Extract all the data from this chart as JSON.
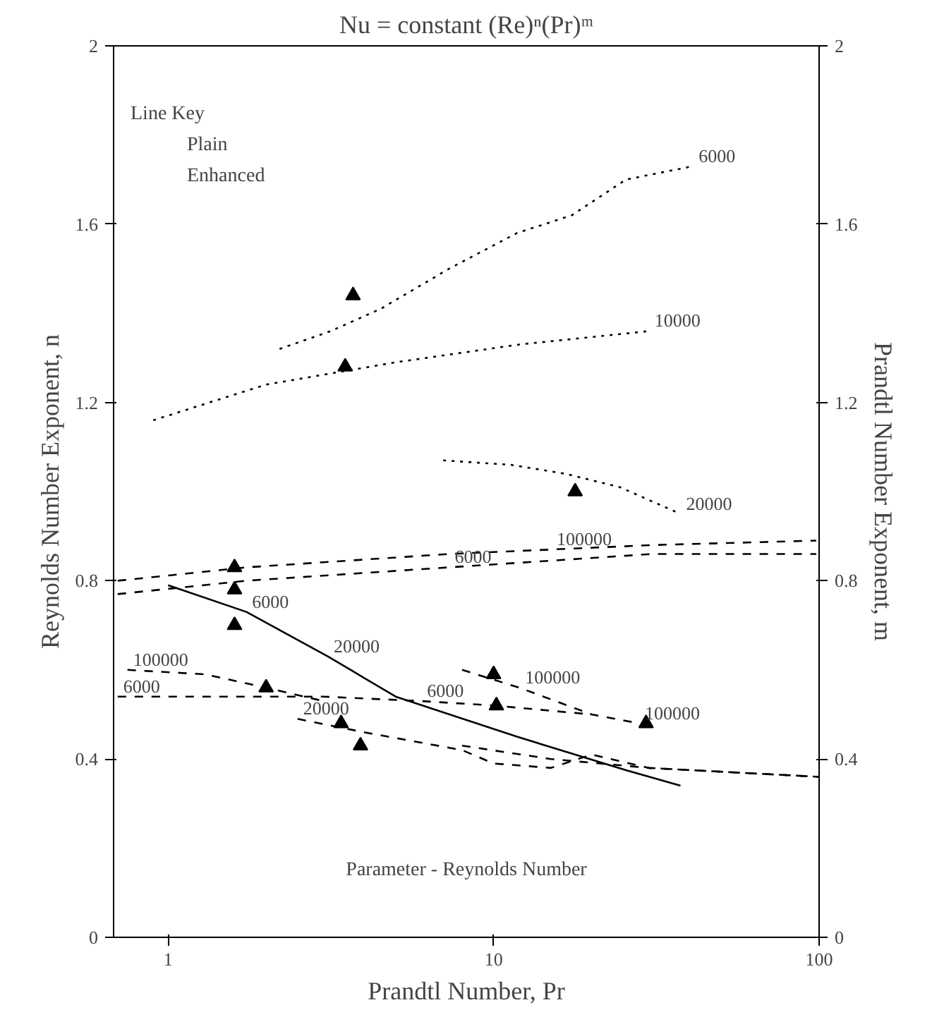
{
  "chart_data": {
    "type": "line",
    "title": "Nu = constant (Re)ⁿ(Pr)ᵐ",
    "xlabel": "Prandtl Number, Pr",
    "ylabel": "Reynolds Number Exponent, n",
    "y2label": "Prandtl Number Exponent, m",
    "log": "x",
    "grid": false,
    "xlim": [
      0.68,
      100
    ],
    "xticks": [
      1,
      10,
      100
    ],
    "ylim": [
      0,
      2
    ],
    "yticks": [
      0,
      0.4,
      0.8,
      1.2,
      1.6,
      2
    ],
    "y2lim": [
      0,
      2
    ],
    "y2ticks": [
      0,
      0.4,
      0.8,
      1.2,
      1.6,
      2
    ],
    "series": [
      {
        "color": "#000000",
        "line_style": "dotted",
        "x": [
          2.2,
          3.16,
          4.5,
          7.3,
          11.8,
          17.4,
          25.5,
          41
        ],
        "values": [
          1.32,
          1.36,
          1.41,
          1.5,
          1.58,
          1.62,
          1.7,
          1.73
        ]
      },
      {
        "color": "#000000",
        "line_style": "dotted",
        "x": [
          0.9,
          2,
          5,
          12,
          30
        ],
        "values": [
          1.16,
          1.24,
          1.29,
          1.33,
          1.36
        ]
      },
      {
        "color": "#000000",
        "line_style": "dotted",
        "x": [
          7,
          11.3,
          16.6,
          24.4,
          37.5
        ],
        "values": [
          1.07,
          1.06,
          1.04,
          1.01,
          0.95
        ]
      },
      {
        "color": "#000000",
        "line_style": "dashed",
        "x": [
          0.7,
          1.74,
          7.3,
          15,
          30.8,
          98
        ],
        "values": [
          0.8,
          0.83,
          0.86,
          0.87,
          0.88,
          0.89
        ]
      },
      {
        "color": "#000000",
        "line_style": "dashed",
        "x": [
          0.7,
          1.74,
          7.3,
          30.8,
          98
        ],
        "values": [
          0.77,
          0.8,
          0.83,
          0.86,
          0.86
        ]
      },
      {
        "color": "#000000",
        "line_style": "solid",
        "x": [
          1.0,
          1.74,
          3.1,
          5.0,
          11.8,
          25.5,
          37.5
        ],
        "values": [
          0.79,
          0.73,
          0.63,
          0.54,
          0.45,
          0.375,
          0.34
        ]
      },
      {
        "color": "#000000",
        "line_style": "dashed",
        "x": [
          0.75,
          1.3,
          2,
          3
        ],
        "values": [
          0.6,
          0.59,
          0.56,
          0.53
        ]
      },
      {
        "color": "#000000",
        "line_style": "dashed",
        "x": [
          0.7,
          1.5,
          3,
          6,
          10,
          20
        ],
        "values": [
          0.54,
          0.54,
          0.54,
          0.53,
          0.52,
          0.5
        ]
      },
      {
        "color": "#000000",
        "line_style": "dashed",
        "x": [
          2.5,
          4,
          8,
          10,
          15,
          20,
          30,
          100
        ],
        "values": [
          0.49,
          0.46,
          0.42,
          0.39,
          0.38,
          0.41,
          0.38,
          0.36
        ]
      },
      {
        "color": "#000000",
        "line_style": "dashed",
        "x": [
          8,
          12,
          20,
          28
        ],
        "values": [
          0.6,
          0.56,
          0.5,
          0.48
        ]
      },
      {
        "color": "#000000",
        "line_style": "dashed",
        "x": [
          8,
          15,
          30,
          100
        ],
        "values": [
          0.43,
          0.4,
          0.38,
          0.36
        ]
      },
      {
        "type": "scatter",
        "marker": "triangle",
        "color": "#000000",
        "x": [
          3.7,
          3.5,
          17.8,
          1.6,
          1.6,
          1.6
        ],
        "values": [
          1.44,
          1.28,
          1.0,
          0.83,
          0.78,
          0.7
        ]
      },
      {
        "type": "scatter",
        "marker": "triangle",
        "color": "#000000",
        "x": [
          2.0,
          3.4,
          3.9,
          10,
          10.2,
          29.4
        ],
        "values": [
          0.56,
          0.48,
          0.43,
          0.59,
          0.52,
          0.48
        ]
      }
    ],
    "annotations": [
      "Line Key",
      "Plain",
      "Enhanced",
      "Parameter - Reynolds Number",
      {
        "text": "6000",
        "x": 41,
        "y": 1.73
      },
      {
        "text": "10000",
        "x": 30,
        "y": 1.36
      },
      {
        "text": "20000",
        "x": 37.5,
        "y": 0.95
      },
      {
        "text": "100000",
        "x": 15,
        "y": 0.87
      },
      {
        "text": "6000",
        "x": 7.3,
        "y": 0.83
      },
      {
        "text": "6000",
        "x": 1.74,
        "y": 0.73
      },
      {
        "text": "20000",
        "x": 3.1,
        "y": 0.63
      },
      {
        "text": "100000",
        "x": 0.75,
        "y": 0.6
      },
      {
        "text": "6000",
        "x": 6,
        "y": 0.53
      },
      {
        "text": "6000",
        "x": 0.7,
        "y": 0.54
      },
      {
        "text": "20000",
        "x": 2.5,
        "y": 0.49
      },
      {
        "text": "100000",
        "x": 12,
        "y": 0.56
      },
      {
        "text": "100000",
        "x": 28,
        "y": 0.48
      }
    ]
  }
}
